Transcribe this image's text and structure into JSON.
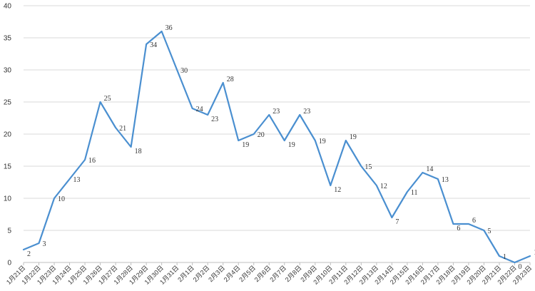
{
  "chart_data": {
    "type": "line",
    "title": "",
    "xlabel": "",
    "ylabel": "",
    "ylim": [
      0,
      40
    ],
    "yticks": [
      0,
      5,
      10,
      15,
      20,
      25,
      30,
      35,
      40
    ],
    "grid": true,
    "legend": "none",
    "line_color": "#4a8fd0",
    "categories": [
      "1月21日",
      "1月22日",
      "1月23日",
      "1月24日",
      "1月25日",
      "1月26日",
      "1月27日",
      "1月28日",
      "1月29日",
      "1月30日",
      "1月31日",
      "2月1日",
      "2月2日",
      "2月3日",
      "2月4日",
      "2月5日",
      "2月6日",
      "2月7日",
      "2月8日",
      "2月9日",
      "2月10日",
      "2月11日",
      "2月12日",
      "2月13日",
      "2月14日",
      "2月15日",
      "2月16日",
      "2月17日",
      "2月18日",
      "2月19日",
      "2月20日",
      "2月21日",
      "2月22日",
      "2月23日"
    ],
    "series": [
      {
        "values": [
          2,
          3,
          10,
          13,
          16,
          25,
          21,
          18,
          34,
          36,
          30,
          24,
          23,
          28,
          19,
          20,
          23,
          19,
          23,
          19,
          12,
          19,
          15,
          12,
          7,
          11,
          14,
          13,
          6,
          6,
          5,
          1,
          0,
          1
        ]
      }
    ]
  }
}
